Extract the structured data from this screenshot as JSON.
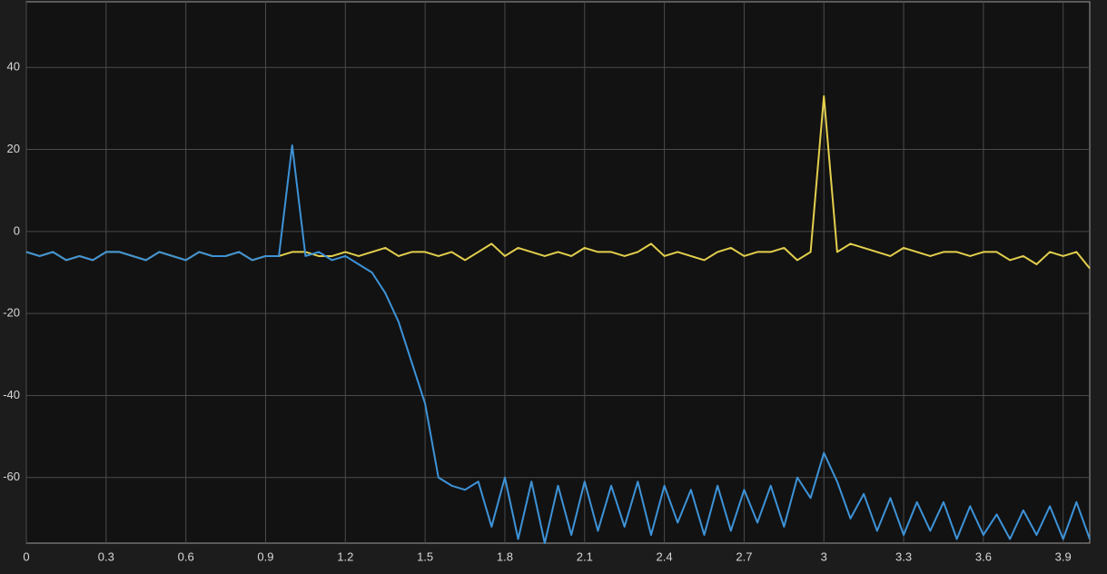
{
  "chart_data": {
    "type": "line",
    "x": [
      0,
      0.05,
      0.1,
      0.15,
      0.2,
      0.25,
      0.3,
      0.35,
      0.4,
      0.45,
      0.5,
      0.55,
      0.6,
      0.65,
      0.7,
      0.75,
      0.8,
      0.85,
      0.9,
      0.95,
      1.0,
      1.05,
      1.1,
      1.15,
      1.2,
      1.25,
      1.3,
      1.35,
      1.4,
      1.45,
      1.5,
      1.55,
      1.6,
      1.65,
      1.7,
      1.75,
      1.8,
      1.85,
      1.9,
      1.95,
      2.0,
      2.05,
      2.1,
      2.15,
      2.2,
      2.25,
      2.3,
      2.35,
      2.4,
      2.45,
      2.5,
      2.55,
      2.6,
      2.65,
      2.7,
      2.75,
      2.8,
      2.85,
      2.9,
      2.95,
      3.0,
      3.05,
      3.1,
      3.15,
      3.2,
      3.25,
      3.3,
      3.35,
      3.4,
      3.45,
      3.5,
      3.55,
      3.6,
      3.65,
      3.7,
      3.75,
      3.8,
      3.85,
      3.9,
      3.95,
      4.0
    ],
    "series": [
      {
        "color": "#e3cf4d",
        "values": [
          -5,
          -6,
          -5,
          -7,
          -6,
          -7,
          -5,
          -5,
          -6,
          -7,
          -5,
          -6,
          -7,
          -5,
          -6,
          -6,
          -5,
          -7,
          -6,
          -6,
          -5,
          -5,
          -6,
          -6,
          -5,
          -6,
          -5,
          -4,
          -6,
          -5,
          -5,
          -6,
          -5,
          -7,
          -5,
          -3,
          -6,
          -4,
          -5,
          -6,
          -5,
          -6,
          -4,
          -5,
          -5,
          -6,
          -5,
          -3,
          -6,
          -5,
          -6,
          -7,
          -5,
          -4,
          -6,
          -5,
          -5,
          -4,
          -7,
          -5,
          33,
          -5,
          -3,
          -4,
          -5,
          -6,
          -4,
          -5,
          -6,
          -5,
          -5,
          -6,
          -5,
          -5,
          -7,
          -6,
          -8,
          -5,
          -6,
          -5,
          -9
        ]
      },
      {
        "color": "#3d93d8",
        "values": [
          -5,
          -6,
          -5,
          -7,
          -6,
          -7,
          -5,
          -5,
          -6,
          -7,
          -5,
          -6,
          -7,
          -5,
          -6,
          -6,
          -5,
          -7,
          -6,
          -6,
          21,
          -6,
          -5,
          -7,
          -6,
          -8,
          -10,
          -15,
          -22,
          -32,
          -42,
          -60,
          -62,
          -63,
          -61,
          -72,
          -60,
          -75,
          -61,
          -76,
          -62,
          -74,
          -61,
          -73,
          -62,
          -72,
          -61,
          -74,
          -62,
          -71,
          -63,
          -74,
          -62,
          -73,
          -63,
          -71,
          -62,
          -72,
          -60,
          -65,
          -54,
          -61,
          -70,
          -64,
          -73,
          -65,
          -74,
          -66,
          -73,
          -66,
          -75,
          -67,
          -74,
          -69,
          -75,
          -68,
          -74,
          -67,
          -75,
          -66,
          -75
        ]
      }
    ],
    "xlim": [
      0,
      4
    ],
    "xticks": [
      0,
      0.3,
      0.6,
      0.9,
      1.2,
      1.5,
      1.8,
      2.1,
      2.4,
      2.7,
      3,
      3.3,
      3.6,
      3.9
    ],
    "ylim": [
      -76,
      56
    ],
    "yticks": [
      40,
      20,
      0,
      -20,
      -40,
      -60
    ],
    "grid": true
  }
}
